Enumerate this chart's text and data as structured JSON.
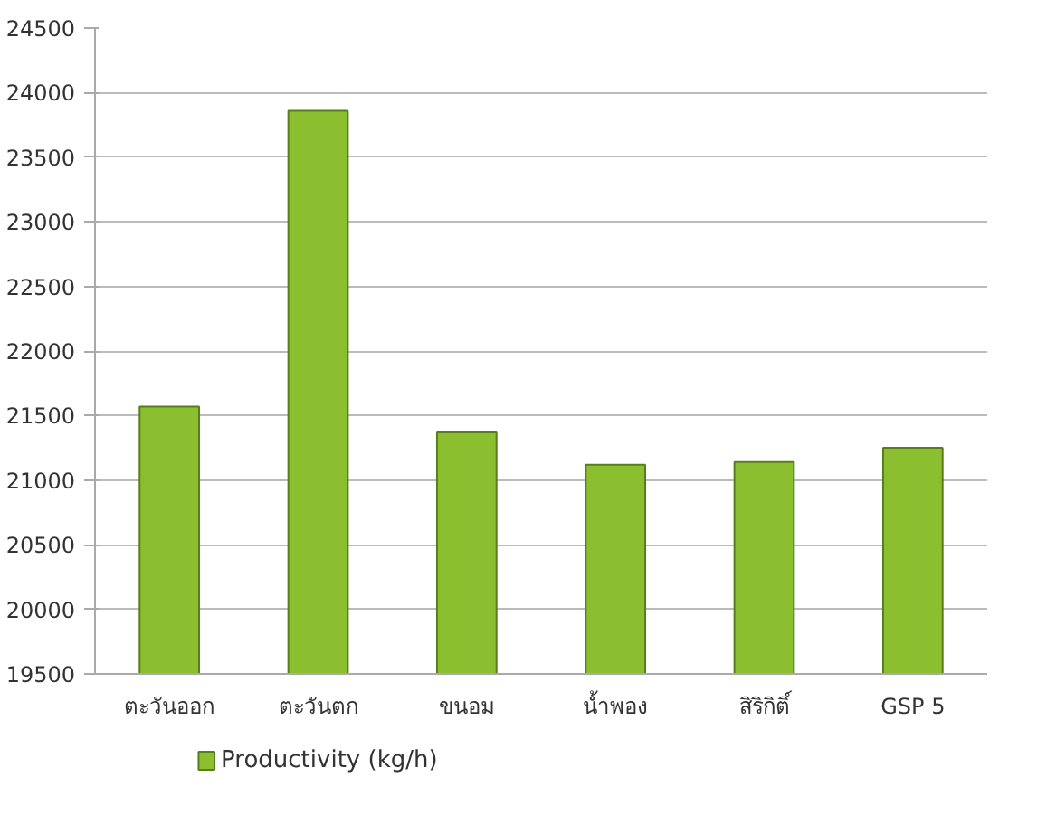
{
  "chart_data": {
    "type": "bar",
    "categories": [
      "ตะวันออก",
      "ตะวันตก",
      "ขนอม",
      "น้ำพอง",
      "สิริกิติ์",
      "GSP 5"
    ],
    "series": [
      {
        "name": "Productivity (kg/h)",
        "color": "#8cbf2f",
        "values": [
          21570,
          23860,
          21370,
          21120,
          21140,
          21250
        ]
      }
    ],
    "ylim": [
      19500,
      24500
    ],
    "yticks": [
      19500,
      20000,
      20500,
      21000,
      21500,
      22000,
      22500,
      23000,
      23500,
      24000,
      24500
    ],
    "grid": "y",
    "legend": "bottom left"
  }
}
